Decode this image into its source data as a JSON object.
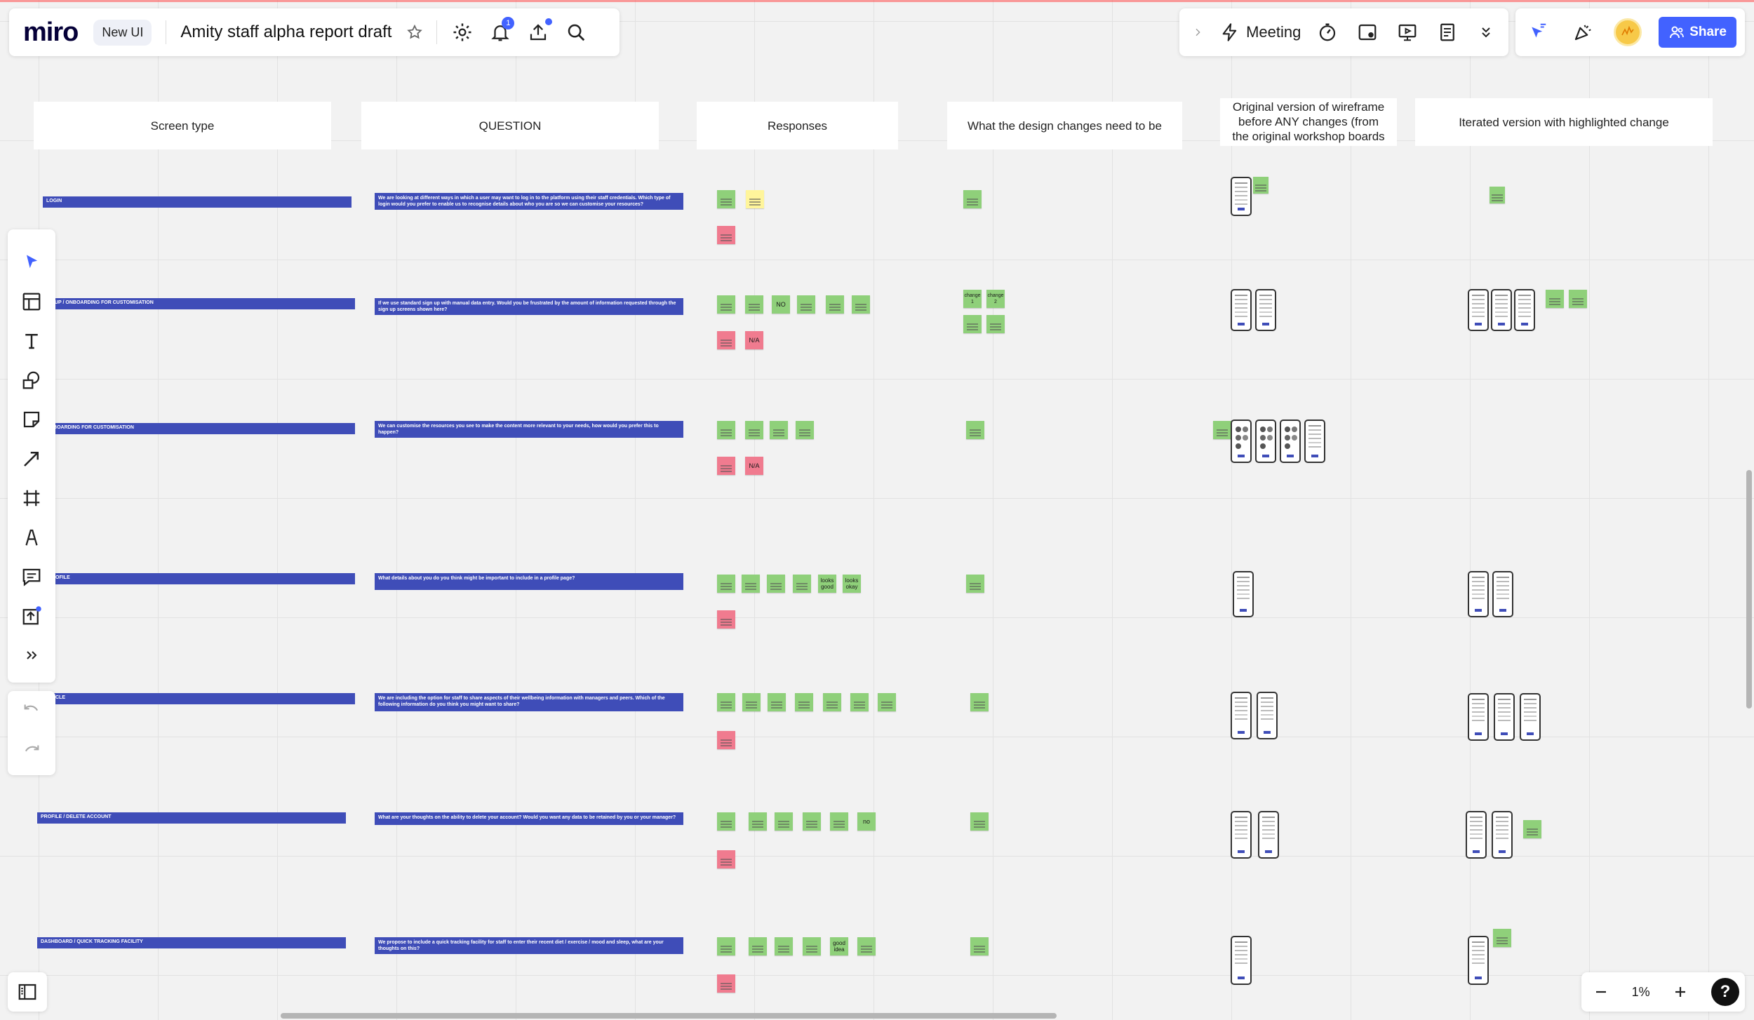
{
  "app": {
    "logo": "miro",
    "badge": "New UI",
    "board_title": "Amity staff alpha report draft",
    "notification_count": "1",
    "colors": {
      "accent": "#4262ff",
      "bar": "#3f4db8",
      "sticky_green": "#8fd07a",
      "sticky_red": "#f07b8f",
      "sticky_yellow": "#fff59b"
    }
  },
  "topbar": {
    "meeting_label": "Meeting",
    "share_label": "Share",
    "icons": [
      "settings-icon",
      "bell-icon",
      "upload-icon",
      "search-icon",
      "chevron-right-icon",
      "lightning-icon",
      "timer-icon",
      "card-icon",
      "presentation-icon",
      "notes-icon",
      "chevrons-down-icon",
      "cursor-flag-icon",
      "celebrate-icon",
      "avatar"
    ]
  },
  "headers": {
    "screen_type": "Screen type",
    "question": "QUESTION",
    "responses": "Responses",
    "design_changes": "What the design changes need to be",
    "original": "Original version of wireframe before ANY changes (from the original workshop boards or",
    "iterated": "Iterated version with highlighted change"
  },
  "rows": [
    {
      "screen": "LOGIN",
      "question": "We are looking at different ways in which a user may want to log in to the platform using their staff credentials. Which type of login would you prefer to enable us to recognise details about who you are so we can customise your resources?"
    },
    {
      "screen": "N UP / ONBOARDING FOR CUSTOMISATION",
      "question": "If we use standard sign up with manual data entry. Would you be frustrated by the amount of information requested through the sign up screens shown here?"
    },
    {
      "screen": "NBOARDING FOR CUSTOMISATION",
      "question": "We can customise the resources you see to make the content more relevant to your needs, how would you prefer this to happen?"
    },
    {
      "screen": "OFILE",
      "question": "What details about you do you think might be important to include in a profile page?"
    },
    {
      "screen": "CLE",
      "question": "We are including the option for staff to share aspects of their wellbeing information with managers and peers. Which of the following information do you think you might want to share?"
    },
    {
      "screen": "PROFILE / DELETE ACCOUNT",
      "question": "What are your thoughts on the ability to delete your account? Would you want any data to be retained by you or your manager?"
    },
    {
      "screen": "DASHBOARD / QUICK TRACKING FACILITY",
      "question": "We propose to include a quick tracking facility for staff to enter their recent diet / exercise / mood and sleep, what are your thoughts on this?"
    }
  ],
  "stickies": {
    "no": "NO",
    "na": "N/A",
    "change1": "change 1",
    "change2": "change 2",
    "looks_good": "looks good",
    "looks_okay": "looks okay",
    "no_lower": "no",
    "good_idea": "good idea"
  },
  "zoom": {
    "level": "1%"
  },
  "help": "?"
}
